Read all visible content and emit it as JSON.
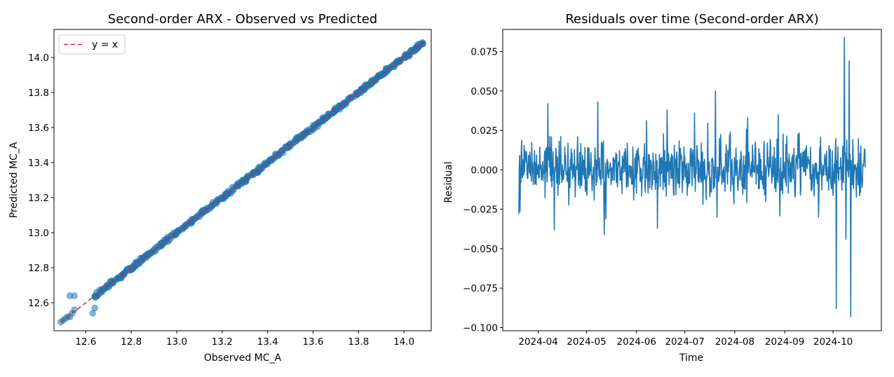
{
  "chart_data": [
    {
      "type": "scatter",
      "title": "Second-order ARX - Observed vs Predicted",
      "xlabel": "Observed MC_A",
      "ylabel": "Predicted MC_A",
      "xlim": [
        12.46,
        14.12
      ],
      "ylim": [
        12.44,
        14.16
      ],
      "xticks": [
        12.6,
        12.8,
        13.0,
        13.2,
        13.4,
        13.6,
        13.8,
        14.0
      ],
      "xtick_labels": [
        "12.6",
        "12.8",
        "13.0",
        "13.2",
        "13.4",
        "13.6",
        "13.8",
        "14.0"
      ],
      "yticks": [
        12.6,
        12.8,
        13.0,
        13.2,
        13.4,
        13.6,
        13.8,
        14.0
      ],
      "ytick_labels": [
        "12.6",
        "12.8",
        "13.0",
        "13.2",
        "13.4",
        "13.6",
        "13.8",
        "14.0"
      ],
      "grid": false,
      "legend": {
        "entries": [
          "y = x"
        ],
        "location": "upper-left"
      },
      "reference_line": {
        "name": "y = x",
        "style": "dashed",
        "color": "#d62728",
        "from": [
          12.49,
          12.49
        ],
        "to": [
          14.09,
          14.09
        ]
      },
      "point_color": "#1f77b4",
      "points": [
        [
          12.49,
          12.49
        ],
        [
          12.5,
          12.5
        ],
        [
          12.51,
          12.51
        ],
        [
          12.52,
          12.52
        ],
        [
          12.53,
          12.52
        ],
        [
          12.54,
          12.54
        ],
        [
          12.55,
          12.56
        ],
        [
          12.53,
          12.64
        ],
        [
          12.55,
          12.64
        ],
        [
          12.63,
          12.54
        ],
        [
          12.64,
          12.57
        ],
        [
          12.65,
          12.64
        ],
        [
          12.67,
          12.66
        ],
        [
          12.69,
          12.69
        ],
        [
          12.72,
          12.72
        ],
        [
          12.75,
          12.75
        ],
        [
          12.78,
          12.79
        ],
        [
          12.81,
          12.81
        ],
        [
          12.85,
          12.85
        ],
        [
          12.89,
          12.89
        ],
        [
          12.93,
          12.93
        ],
        [
          12.97,
          12.96
        ],
        [
          13.01,
          13.01
        ],
        [
          13.05,
          13.05
        ],
        [
          13.09,
          13.09
        ],
        [
          13.13,
          13.13
        ],
        [
          13.17,
          13.17
        ],
        [
          13.21,
          13.21
        ],
        [
          13.25,
          13.25
        ],
        [
          13.29,
          13.3
        ],
        [
          13.33,
          13.33
        ],
        [
          13.37,
          13.37
        ],
        [
          13.41,
          13.41
        ],
        [
          13.45,
          13.45
        ],
        [
          13.49,
          13.49
        ],
        [
          13.53,
          13.53
        ],
        [
          13.57,
          13.57
        ],
        [
          13.61,
          13.61
        ],
        [
          13.65,
          13.65
        ],
        [
          13.69,
          13.69
        ],
        [
          13.73,
          13.73
        ],
        [
          13.77,
          13.77
        ],
        [
          13.81,
          13.81
        ],
        [
          13.85,
          13.85
        ],
        [
          13.89,
          13.89
        ],
        [
          13.93,
          13.93
        ],
        [
          13.97,
          13.97
        ],
        [
          14.01,
          14.01
        ],
        [
          14.05,
          14.05
        ],
        [
          14.08,
          14.08
        ]
      ]
    },
    {
      "type": "line",
      "title": "Residuals over time (Second-order ARX)",
      "xlabel": "Time",
      "ylabel": "Residual",
      "x_range": [
        "2024-03-20",
        "2024-10-21"
      ],
      "xlim": [
        "2024-03-10",
        "2024-10-31"
      ],
      "ylim": [
        -0.102,
        0.089
      ],
      "xticks": [
        "2024-04-01",
        "2024-05-01",
        "2024-06-01",
        "2024-07-01",
        "2024-08-01",
        "2024-09-01",
        "2024-10-01"
      ],
      "xtick_labels": [
        "2024-04",
        "2024-05",
        "2024-06",
        "2024-07",
        "2024-08",
        "2024-09",
        "2024-10"
      ],
      "yticks": [
        -0.1,
        -0.075,
        -0.05,
        -0.025,
        0.0,
        0.025,
        0.05,
        0.075
      ],
      "ytick_labels": [
        "−0.100",
        "−0.075",
        "−0.050",
        "−0.025",
        "0.000",
        "0.025",
        "0.050",
        "0.075"
      ],
      "grid": false,
      "series_color": "#1f77b4",
      "residual_spread": 0.012,
      "spikes": [
        {
          "date": "2024-03-20",
          "value": -0.028
        },
        {
          "date": "2024-04-07",
          "value": 0.042
        },
        {
          "date": "2024-04-11",
          "value": -0.038
        },
        {
          "date": "2024-05-08",
          "value": 0.043
        },
        {
          "date": "2024-05-12",
          "value": -0.041
        },
        {
          "date": "2024-06-14",
          "value": -0.037
        },
        {
          "date": "2024-06-20",
          "value": 0.038
        },
        {
          "date": "2024-07-07",
          "value": 0.036
        },
        {
          "date": "2024-07-20",
          "value": 0.05
        },
        {
          "date": "2024-07-21",
          "value": -0.03
        },
        {
          "date": "2024-08-09",
          "value": 0.033
        },
        {
          "date": "2024-08-28",
          "value": 0.035
        },
        {
          "date": "2024-09-22",
          "value": -0.03
        },
        {
          "date": "2024-10-03",
          "value": -0.088
        },
        {
          "date": "2024-10-08",
          "value": 0.084
        },
        {
          "date": "2024-10-09",
          "value": -0.044
        },
        {
          "date": "2024-10-11",
          "value": 0.069
        },
        {
          "date": "2024-10-12",
          "value": -0.093
        }
      ]
    }
  ]
}
